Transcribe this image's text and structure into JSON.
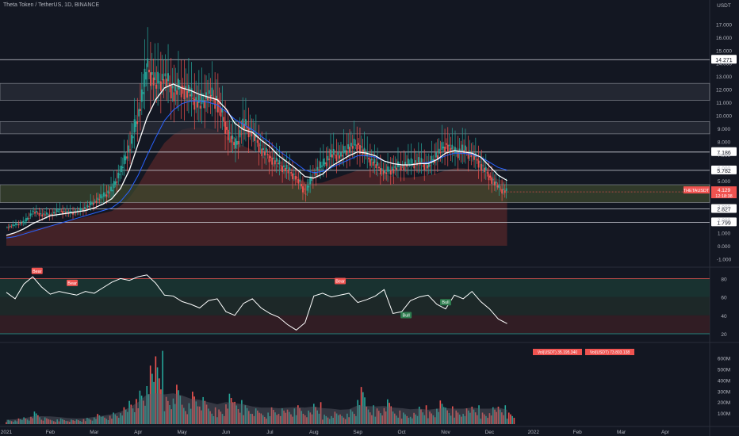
{
  "header": {
    "title": "Theta Token / TetherUS, 1D, BINANCE"
  },
  "colors": {
    "background": "#131722",
    "up": "#26a69a",
    "down": "#ef5350",
    "level_line": "#d1d4dc",
    "rsi_line": "#ffffff",
    "ma_fast": "#ffffff",
    "ma_slow": "#2962ff",
    "price_badge": "#ef5350",
    "rsi_upper_zone": "#1b3a34",
    "rsi_lower_zone": "#3a1f26",
    "volume_profile": "#5d606b"
  },
  "chart_data": [
    {
      "type": "line",
      "name": "price",
      "y_axis": {
        "unit": "USDT",
        "ticks": [
          "17.000",
          "16.000",
          "15.000",
          "14.000",
          "13.000",
          "12.000",
          "11.000",
          "10.000",
          "9.000",
          "8.000",
          "7.000",
          "6.000",
          "5.000",
          "4.000",
          "3.000",
          "2.000",
          "1.000",
          "0.000",
          "-1.000"
        ],
        "range": [
          -1.2,
          17
        ]
      },
      "x_axis": {
        "ticks": [
          "2021",
          "Feb",
          "Mar",
          "Apr",
          "May",
          "Jun",
          "Jul",
          "Aug",
          "Sep",
          "Oct",
          "Nov",
          "Dec",
          "2022",
          "Feb",
          "Mar",
          "Apr"
        ],
        "tick_months": [
          0,
          1,
          2,
          3,
          4,
          5,
          6,
          7,
          8,
          9,
          10,
          11,
          12,
          13,
          14,
          15
        ]
      },
      "close_series": {
        "x": [
          0,
          0.2,
          0.4,
          0.6,
          0.8,
          1.0,
          1.2,
          1.4,
          1.6,
          1.8,
          2.0,
          2.2,
          2.4,
          2.6,
          2.8,
          3.0,
          3.2,
          3.4,
          3.6,
          3.8,
          4.0,
          4.2,
          4.4,
          4.6,
          4.8,
          5.0,
          5.2,
          5.4,
          5.6,
          5.8,
          6.0,
          6.2,
          6.4,
          6.6,
          6.8,
          7.0,
          7.2,
          7.4,
          7.6,
          7.8,
          8.0,
          8.2,
          8.4,
          8.6,
          8.8,
          9.0,
          9.2,
          9.4,
          9.6,
          9.8,
          10.0,
          10.2,
          10.4,
          10.6,
          10.8,
          11.0,
          11.2,
          11.4
        ],
        "values": [
          1.4,
          1.6,
          1.8,
          2.6,
          2.4,
          2.4,
          2.7,
          2.5,
          2.6,
          2.9,
          3.4,
          3.8,
          4.3,
          5.8,
          7.6,
          10.2,
          13.6,
          12.4,
          12.9,
          11.8,
          12.2,
          11.4,
          10.8,
          11.6,
          11.1,
          9.0,
          7.6,
          9.3,
          8.6,
          7.4,
          6.8,
          6.2,
          5.8,
          5.2,
          4.1,
          5.6,
          6.2,
          7.0,
          6.9,
          7.6,
          7.8,
          6.8,
          6.2,
          5.6,
          5.9,
          6.2,
          6.3,
          6.4,
          6.1,
          7.0,
          7.8,
          7.1,
          7.3,
          7.0,
          6.2,
          5.3,
          4.4,
          4.12
        ]
      },
      "ma_fast": {
        "name": "",
        "values": [
          0.8,
          1.0,
          1.3,
          1.7,
          2.0,
          2.3,
          2.4,
          2.5,
          2.6,
          2.7,
          2.9,
          3.2,
          3.6,
          4.4,
          5.8,
          7.8,
          9.8,
          11.2,
          12.1,
          12.4,
          12.1,
          11.9,
          11.6,
          11.4,
          11.2,
          10.5,
          9.4,
          8.9,
          8.7,
          8.1,
          7.6,
          6.9,
          6.4,
          5.9,
          5.3,
          5.2,
          5.5,
          6.1,
          6.5,
          6.9,
          7.2,
          7.1,
          6.9,
          6.5,
          6.3,
          6.2,
          6.2,
          6.3,
          6.3,
          6.6,
          7.1,
          7.3,
          7.2,
          7.1,
          6.8,
          6.1,
          5.4,
          5.0
        ]
      },
      "ma_slow": {
        "name": "",
        "values": [
          0.6,
          0.7,
          0.9,
          1.1,
          1.3,
          1.5,
          1.7,
          1.9,
          2.1,
          2.3,
          2.5,
          2.7,
          2.9,
          3.4,
          4.2,
          5.4,
          6.9,
          8.3,
          9.6,
          10.4,
          10.9,
          11.1,
          11.1,
          11.0,
          10.8,
          10.3,
          9.7,
          9.3,
          8.9,
          8.4,
          7.9,
          7.3,
          6.8,
          6.3,
          5.8,
          5.6,
          5.7,
          6.0,
          6.3,
          6.6,
          6.9,
          6.9,
          6.8,
          6.5,
          6.3,
          6.2,
          6.2,
          6.3,
          6.4,
          6.6,
          6.9,
          7.1,
          7.1,
          7.0,
          6.8,
          6.4,
          6.0,
          5.8
        ]
      },
      "horizontal_levels": [
        {
          "value": 14.271,
          "label": "14.271"
        },
        {
          "value": 7.186,
          "label": "7.186"
        },
        {
          "value": 5.782,
          "label": "5.782"
        },
        {
          "value": 2.827,
          "label": "2.827"
        },
        {
          "value": 1.799,
          "label": "1.799"
        }
      ],
      "zones": [
        {
          "from": 11.15,
          "to": 12.45
        },
        {
          "from": 8.58,
          "to": 9.52
        },
        {
          "from": 3.31,
          "to": 4.68
        }
      ],
      "last_price": {
        "symbol": "THETAUSDT",
        "value": "4.129",
        "countdown": "12:18:38"
      },
      "grid": false
    },
    {
      "type": "line",
      "name": "rsi",
      "y_axis": {
        "ticks": [
          "80",
          "60",
          "40",
          "20"
        ],
        "range": [
          12,
          88
        ]
      },
      "bands": [
        80,
        60,
        40,
        20
      ],
      "x": [
        0,
        0.2,
        0.4,
        0.6,
        0.8,
        1.0,
        1.2,
        1.4,
        1.6,
        1.8,
        2.0,
        2.2,
        2.4,
        2.6,
        2.8,
        3.0,
        3.2,
        3.4,
        3.6,
        3.8,
        4.0,
        4.2,
        4.4,
        4.6,
        4.8,
        5.0,
        5.2,
        5.4,
        5.6,
        5.8,
        6.0,
        6.2,
        6.4,
        6.6,
        6.8,
        7.0,
        7.2,
        7.4,
        7.6,
        7.8,
        8.0,
        8.2,
        8.4,
        8.6,
        8.8,
        9.0,
        9.2,
        9.4,
        9.6,
        9.8,
        10.0,
        10.2,
        10.4,
        10.6,
        10.8,
        11.0,
        11.2,
        11.4
      ],
      "values": [
        65,
        58,
        74,
        82,
        71,
        63,
        66,
        64,
        62,
        66,
        64,
        70,
        76,
        80,
        78,
        82,
        84,
        75,
        62,
        61,
        55,
        52,
        48,
        56,
        58,
        44,
        40,
        53,
        58,
        48,
        42,
        38,
        30,
        24,
        32,
        61,
        64,
        60,
        62,
        64,
        54,
        57,
        61,
        68,
        42,
        44,
        56,
        60,
        62,
        52,
        47,
        62,
        58,
        66,
        55,
        47,
        36,
        31
      ],
      "signals": [
        {
          "label": "Bear",
          "x": 0.7,
          "value": 84,
          "kind": "bear"
        },
        {
          "label": "Bear",
          "x": 1.5,
          "value": 71,
          "kind": "bear"
        },
        {
          "label": "Bear",
          "x": 7.6,
          "value": 73,
          "kind": "bear"
        },
        {
          "label": "Bull",
          "x": 9.1,
          "value": 36,
          "kind": "bull"
        },
        {
          "label": "Bull",
          "x": 10.0,
          "value": 50,
          "kind": "bull"
        }
      ]
    },
    {
      "type": "bar",
      "name": "volume",
      "y_axis": {
        "ticks": [
          "600M",
          "500M",
          "400M",
          "300M",
          "200M",
          "100M"
        ],
        "range": [
          0,
          700
        ]
      },
      "x": [
        0,
        0.2,
        0.4,
        0.6,
        0.8,
        1.0,
        1.2,
        1.4,
        1.6,
        1.8,
        2.0,
        2.2,
        2.4,
        2.6,
        2.8,
        3.0,
        3.2,
        3.4,
        3.6,
        3.8,
        4.0,
        4.2,
        4.4,
        4.6,
        4.8,
        5.0,
        5.2,
        5.4,
        5.6,
        5.8,
        6.0,
        6.2,
        6.4,
        6.6,
        6.8,
        7.0,
        7.2,
        7.4,
        7.6,
        7.8,
        8.0,
        8.2,
        8.4,
        8.6,
        8.8,
        9.0,
        9.2,
        9.4,
        9.6,
        9.8,
        10.0,
        10.2,
        10.4,
        10.6,
        10.8,
        11.0,
        11.2,
        11.4
      ],
      "values": [
        40,
        50,
        70,
        120,
        60,
        45,
        55,
        40,
        48,
        60,
        90,
        80,
        110,
        150,
        240,
        320,
        520,
        700,
        260,
        350,
        200,
        310,
        240,
        160,
        140,
        270,
        230,
        180,
        140,
        110,
        160,
        140,
        150,
        180,
        120,
        210,
        90,
        110,
        100,
        140,
        330,
        180,
        150,
        220,
        130,
        110,
        100,
        180,
        120,
        210,
        170,
        130,
        140,
        180,
        110,
        150,
        180,
        110
      ],
      "up": [
        true,
        true,
        true,
        true,
        false,
        false,
        true,
        false,
        true,
        true,
        true,
        true,
        true,
        true,
        true,
        true,
        true,
        false,
        false,
        true,
        false,
        false,
        false,
        true,
        false,
        false,
        false,
        true,
        false,
        false,
        false,
        false,
        false,
        false,
        false,
        true,
        true,
        true,
        false,
        true,
        true,
        false,
        false,
        false,
        true,
        true,
        true,
        true,
        false,
        true,
        true,
        false,
        true,
        false,
        false,
        false,
        false,
        false
      ],
      "volume_ma": [
        40,
        44,
        52,
        70,
        72,
        70,
        64,
        56,
        52,
        54,
        66,
        76,
        90,
        112,
        150,
        200,
        270,
        280,
        270,
        280,
        260,
        230,
        220,
        200,
        180,
        200,
        190,
        180,
        160,
        150,
        150,
        145,
        150,
        155,
        150,
        160,
        145,
        140,
        130,
        135,
        170,
        165,
        160,
        165,
        150,
        145,
        135,
        140,
        130,
        140,
        145,
        140,
        140,
        150,
        140,
        140,
        150,
        130
      ]
    }
  ],
  "legend_badges": [
    "Vol(USDT) 35.195.340",
    "Vol(USDT) 73.803.138"
  ]
}
